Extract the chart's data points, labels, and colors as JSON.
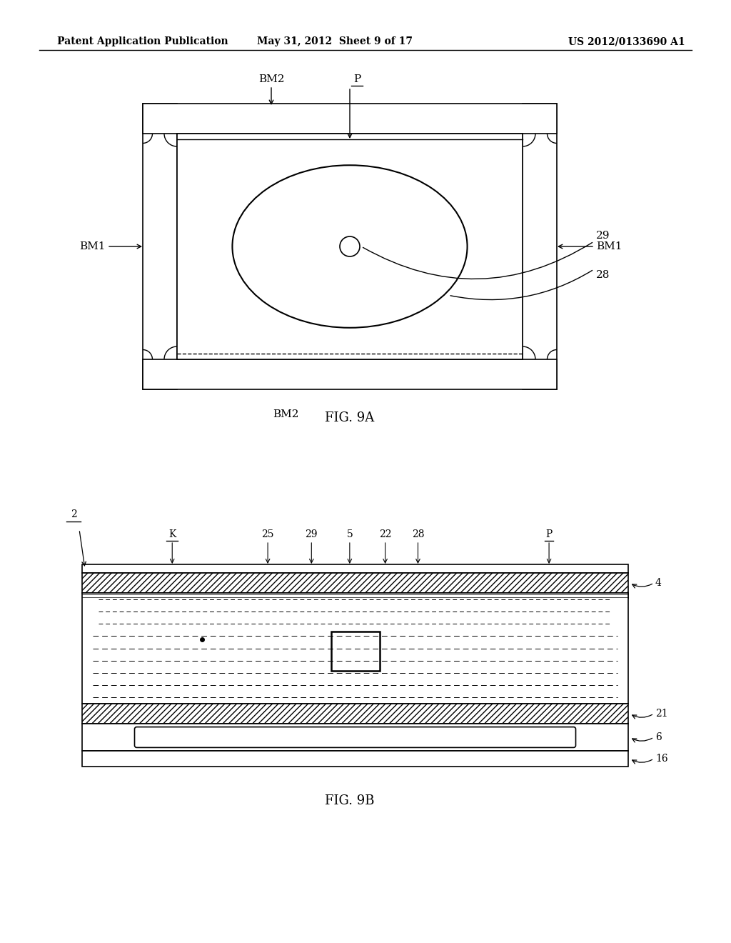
{
  "bg_color": "#ffffff",
  "lc": "#000000",
  "header_left": "Patent Application Publication",
  "header_mid": "May 31, 2012  Sheet 9 of 17",
  "header_right": "US 2012/0133690 A1",
  "fig9a_label": "FIG. 9A",
  "fig9b_label": "FIG. 9B"
}
